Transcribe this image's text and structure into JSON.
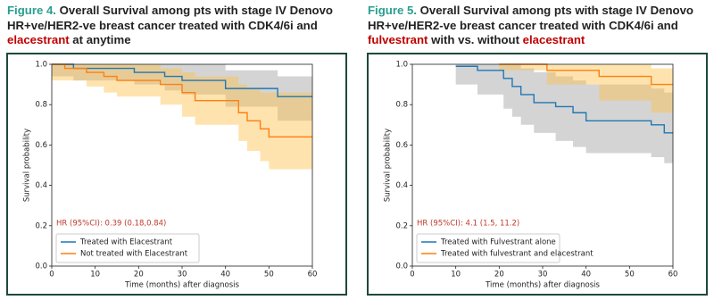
{
  "chart_data": [
    {
      "type": "line",
      "step": true,
      "title_lines": [
        [
          {
            "text": "Figure 4.",
            "color": "#2a9d8f"
          },
          {
            "text": " Overall Survival among pts with stage IV Denovo",
            "color": "#222222"
          }
        ],
        [
          {
            "text": "HR+ve/HER2-ve breast cancer treated with CDK4/6i and",
            "color": "#222222"
          }
        ],
        [
          {
            "text": "elacestrant",
            "color": "#c00000"
          },
          {
            "text": " at anytime",
            "color": "#222222"
          }
        ]
      ],
      "x_label": "Time (months) after diagnosis",
      "y_label": "Survival probability",
      "annotation": "HR (95%CI): 0.39 (0.18,0.84)",
      "annotation_color": "#c0392b",
      "xlim": [
        0,
        60
      ],
      "xticks": [
        0,
        10,
        20,
        30,
        40,
        50,
        60
      ],
      "ylim": [
        0,
        1
      ],
      "yticks": [
        {
          "value": 0,
          "label": "0.0"
        },
        0.2,
        0.4,
        0.6,
        0.8,
        {
          "value": 1,
          "label": "1.0"
        }
      ],
      "legend": "lower left",
      "series": [
        {
          "name": "Treated with Elacestrant",
          "color": "#1f77b4",
          "band_color": "#a0a0a0",
          "x": [
            0,
            5,
            19,
            26,
            30,
            40,
            52,
            60
          ],
          "values": [
            1.0,
            0.98,
            0.96,
            0.94,
            0.92,
            0.88,
            0.84,
            0.84
          ],
          "lower": [
            0.94,
            0.92,
            0.9,
            0.87,
            0.85,
            0.79,
            0.72,
            0.72
          ],
          "upper": [
            1.0,
            1.0,
            1.0,
            1.0,
            1.0,
            0.97,
            0.94,
            0.94
          ]
        },
        {
          "name": "Not treated with Elacestrant",
          "color": "#ff7f0e",
          "band_color": "#ffc04d",
          "x": [
            0,
            3,
            8,
            12,
            15,
            25,
            30,
            33,
            43,
            45,
            48,
            50,
            60
          ],
          "values": [
            1.0,
            0.98,
            0.96,
            0.94,
            0.92,
            0.9,
            0.86,
            0.82,
            0.76,
            0.72,
            0.68,
            0.64,
            0.64
          ],
          "lower": [
            0.92,
            0.92,
            0.89,
            0.86,
            0.84,
            0.8,
            0.74,
            0.7,
            0.62,
            0.57,
            0.52,
            0.48,
            0.48
          ],
          "upper": [
            1.0,
            1.0,
            1.0,
            1.0,
            1.0,
            0.98,
            0.96,
            0.94,
            0.9,
            0.88,
            0.86,
            0.86,
            0.86
          ]
        }
      ]
    },
    {
      "type": "line",
      "step": true,
      "title_lines": [
        [
          {
            "text": "Figure 5.",
            "color": "#2a9d8f"
          },
          {
            "text": " Overall Survival among pts with stage IV Denovo",
            "color": "#222222"
          }
        ],
        [
          {
            "text": "HR+ve/HER2-ve breast cancer treated with CDK4/6i and",
            "color": "#222222"
          }
        ],
        [
          {
            "text": "fulvestrant",
            "color": "#c00000"
          },
          {
            "text": " with vs. without ",
            "color": "#222222"
          },
          {
            "text": "elacestrant",
            "color": "#c00000"
          }
        ]
      ],
      "x_label": "Time (months) after diagnosis",
      "y_label": "Survival probability",
      "annotation": "HR (95%CI): 4.1 (1.5, 11.2)",
      "annotation_color": "#c0392b",
      "xlim": [
        0,
        60
      ],
      "xticks": [
        0,
        10,
        20,
        30,
        40,
        50,
        60
      ],
      "ylim": [
        0,
        1
      ],
      "yticks": [
        {
          "value": 0,
          "label": "0.0"
        },
        0.2,
        0.4,
        0.6,
        0.8,
        {
          "value": 1,
          "label": "1.0"
        }
      ],
      "legend": "lower left",
      "series": [
        {
          "name": "Treated with Fulvestrant alone",
          "color": "#1f77b4",
          "band_color": "#a0a0a0",
          "x": [
            10,
            15,
            21,
            23,
            25,
            28,
            33,
            37,
            40,
            55,
            58,
            60
          ],
          "values": [
            0.99,
            0.97,
            0.93,
            0.89,
            0.85,
            0.81,
            0.79,
            0.76,
            0.72,
            0.7,
            0.66,
            0.66
          ],
          "lower": [
            0.9,
            0.85,
            0.78,
            0.74,
            0.7,
            0.66,
            0.62,
            0.59,
            0.56,
            0.54,
            0.51,
            0.51
          ],
          "upper": [
            1.0,
            1.0,
            1.0,
            1.0,
            0.98,
            0.96,
            0.94,
            0.92,
            0.9,
            0.88,
            0.86,
            0.86
          ]
        },
        {
          "name": "Treated with fulvestrant and elacestrant",
          "color": "#ff7f0e",
          "band_color": "#ffc04d",
          "x": [
            20,
            31,
            43,
            55,
            60
          ],
          "values": [
            1.0,
            0.97,
            0.94,
            0.9,
            0.9
          ],
          "lower": [
            0.97,
            0.9,
            0.82,
            0.76,
            0.76
          ],
          "upper": [
            1.0,
            1.0,
            1.0,
            0.98,
            0.98
          ]
        }
      ]
    }
  ]
}
